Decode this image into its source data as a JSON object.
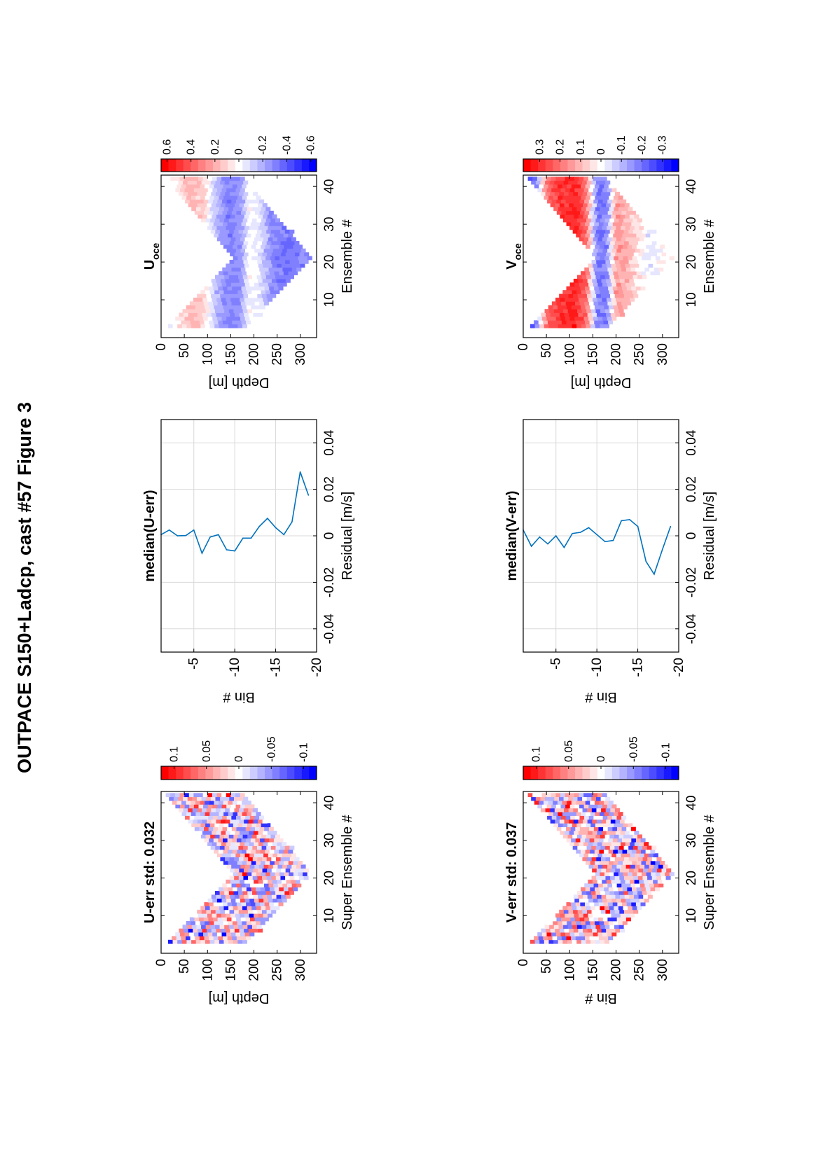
{
  "title": "OUTPACE S150+Ladcp, cast #57  Figure 3",
  "colors": {
    "axis": "#000000",
    "grid": "#d9d9d9",
    "line": "#0072bd",
    "red": "#ff0000",
    "blue": "#0000ff",
    "white": "#ffffff"
  },
  "chart_data": [
    {
      "id": "u_err",
      "type": "heatmap",
      "title": "U-err std: 0.032",
      "xlabel": "Super Ensemble #",
      "ylabel": "Depth [m]",
      "x_ticks": [
        "10",
        "20",
        "30",
        "40"
      ],
      "y_ticks": [
        "0",
        "50",
        "100",
        "150",
        "200",
        "250",
        "300"
      ],
      "xlim": [
        0,
        43
      ],
      "ylim": [
        0,
        335
      ],
      "v_shape": {
        "x_start": 3,
        "x_turn": 21,
        "x_end": 42,
        "top_start": 15,
        "top_end": 10,
        "bottom_max": 325,
        "band": 170
      },
      "colorbar": {
        "vmax": 0.12,
        "ticks": [
          "0.1",
          "0.05",
          "0",
          "-0.05",
          "-0.1"
        ],
        "tick_values": [
          0.1,
          0.05,
          0,
          -0.05,
          -0.1
        ]
      },
      "pattern": "noise",
      "amplitude": 0.06
    },
    {
      "id": "u_median",
      "type": "line",
      "title": "median(U-err)",
      "xlabel": "Residual [m/s]",
      "ylabel": "Bin #",
      "x_ticks": [
        "-0.04",
        "-0.02",
        "0",
        "0.02",
        "0.04"
      ],
      "x_tick_values": [
        -0.04,
        -0.02,
        0,
        0.02,
        0.04
      ],
      "y_ticks": [
        "-5",
        "-10",
        "-15",
        "-20"
      ],
      "y_tick_values": [
        -5,
        -10,
        -15,
        -20
      ],
      "xlim": [
        -0.05,
        0.05
      ],
      "ylim": [
        -20,
        -1
      ],
      "grid": true,
      "bins": [
        -1,
        -2,
        -3,
        -4,
        -5,
        -6,
        -7,
        -8,
        -9,
        -10,
        -11,
        -12,
        -13,
        -14,
        -15,
        -16,
        -17,
        -18,
        -19
      ],
      "values": [
        0.0005,
        0.0025,
        0.0,
        0.0001,
        0.0025,
        -0.0075,
        -0.0005,
        0.0005,
        -0.006,
        -0.0065,
        -0.001,
        -0.001,
        0.004,
        0.0075,
        0.0035,
        0.0005,
        0.006,
        0.0275,
        0.0175
      ]
    },
    {
      "id": "u_oce",
      "type": "heatmap",
      "title": "U",
      "title_sub": "oce",
      "xlabel": "Ensemble #",
      "ylabel": "Depth [m]",
      "x_ticks": [
        "10",
        "20",
        "30",
        "40"
      ],
      "y_ticks": [
        "0",
        "50",
        "100",
        "150",
        "200",
        "250",
        "300"
      ],
      "xlim": [
        0,
        43
      ],
      "ylim": [
        0,
        335
      ],
      "v_shape": {
        "x_start": 3,
        "x_turn": 21,
        "x_end": 42,
        "top_start": 15,
        "top_end": 10,
        "bottom_max": 325,
        "band": 170
      },
      "colorbar": {
        "vmax": 0.65,
        "ticks": [
          "0.6",
          "0.4",
          "0.2",
          "0",
          "-0.2",
          "-0.4",
          "-0.6"
        ],
        "tick_values": [
          0.6,
          0.4,
          0.2,
          0,
          -0.2,
          -0.4,
          -0.6
        ]
      },
      "pattern": "profile",
      "profile_depths": [
        0,
        30,
        60,
        90,
        120,
        145,
        170,
        190,
        210,
        240,
        280,
        330
      ],
      "profile_values": [
        -0.05,
        0.02,
        0.18,
        0.12,
        -0.18,
        -0.32,
        -0.28,
        0.0,
        -0.05,
        -0.3,
        -0.35,
        -0.3
      ],
      "noise": 0.05
    },
    {
      "id": "v_err",
      "type": "heatmap",
      "title": "V-err std: 0.037",
      "xlabel": "Super Ensemble #",
      "ylabel": "Bin #",
      "x_ticks": [
        "10",
        "20",
        "30",
        "40"
      ],
      "y_ticks": [
        "0",
        "50",
        "100",
        "150",
        "200",
        "250",
        "300"
      ],
      "xlim": [
        0,
        43
      ],
      "ylim": [
        0,
        335
      ],
      "v_shape": {
        "x_start": 3,
        "x_turn": 21,
        "x_end": 42,
        "top_start": 15,
        "top_end": 10,
        "bottom_max": 325,
        "band": 170
      },
      "colorbar": {
        "vmax": 0.12,
        "ticks": [
          "0.1",
          "0.05",
          "0",
          "-0.05",
          "-0.1"
        ],
        "tick_values": [
          0.1,
          0.05,
          0,
          -0.05,
          -0.1
        ]
      },
      "pattern": "noise",
      "amplitude": 0.065
    },
    {
      "id": "v_median",
      "type": "line",
      "title": "median(V-err)",
      "xlabel": "Residual [m/s]",
      "ylabel": "Bin #",
      "x_ticks": [
        "-0.04",
        "-0.02",
        "0",
        "0.02",
        "0.04"
      ],
      "x_tick_values": [
        -0.04,
        -0.02,
        0,
        0.02,
        0.04
      ],
      "y_ticks": [
        "-5",
        "-10",
        "-15",
        "-20"
      ],
      "y_tick_values": [
        -5,
        -10,
        -15,
        -20
      ],
      "xlim": [
        -0.05,
        0.05
      ],
      "ylim": [
        -20,
        -1
      ],
      "grid": true,
      "bins": [
        -1,
        -2,
        -3,
        -4,
        -5,
        -6,
        -7,
        -8,
        -9,
        -10,
        -11,
        -12,
        -13,
        -14,
        -15,
        -16,
        -17,
        -18,
        -19
      ],
      "values": [
        0.0025,
        -0.0045,
        -0.0005,
        -0.0035,
        0.0,
        -0.005,
        0.001,
        0.0015,
        0.0035,
        0.0005,
        -0.0025,
        -0.002,
        0.0065,
        0.007,
        0.004,
        -0.011,
        -0.0165,
        -0.006,
        0.004
      ]
    },
    {
      "id": "v_oce",
      "type": "heatmap",
      "title": "V",
      "title_sub": "oce",
      "xlabel": "Ensemble #",
      "ylabel": "Depth [m]",
      "x_ticks": [
        "10",
        "20",
        "30",
        "40"
      ],
      "y_ticks": [
        "0",
        "50",
        "100",
        "150",
        "200",
        "250",
        "300"
      ],
      "xlim": [
        0,
        43
      ],
      "ylim": [
        0,
        335
      ],
      "v_shape": {
        "x_start": 3,
        "x_turn": 21,
        "x_end": 42,
        "top_start": 15,
        "top_end": 10,
        "bottom_max": 325,
        "band": 170
      },
      "colorbar": {
        "vmax": 0.38,
        "ticks": [
          "0.3",
          "0.2",
          "0.1",
          "0",
          "-0.1",
          "-0.2",
          "-0.3"
        ],
        "tick_values": [
          0.3,
          0.2,
          0.1,
          0,
          -0.1,
          -0.2,
          -0.3
        ]
      },
      "pattern": "profile",
      "profile_depths": [
        0,
        25,
        50,
        80,
        110,
        135,
        160,
        180,
        200,
        230,
        270,
        330
      ],
      "profile_values": [
        -0.32,
        -0.2,
        0.2,
        0.3,
        0.33,
        0.22,
        -0.2,
        -0.18,
        0.15,
        0.1,
        -0.03,
        0.05
      ],
      "noise": 0.04
    }
  ]
}
